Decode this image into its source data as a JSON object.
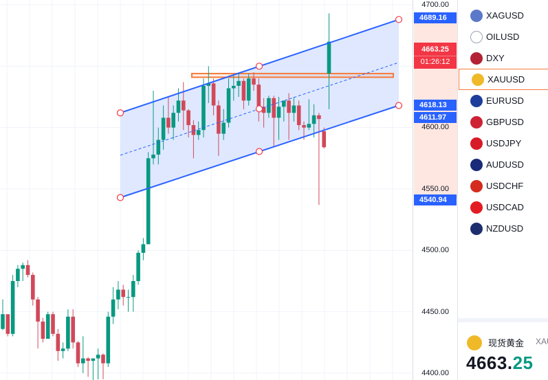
{
  "chart": {
    "price_axis": {
      "labels": [
        "4700.00",
        "4600.00",
        "4550.00",
        "4500.00",
        "4450.00",
        "4400.00"
      ],
      "tags": {
        "upper": "4689.16",
        "mid_top": "4618.13",
        "mid_bottom": "4611.97",
        "lower": "4540.94"
      },
      "current_price": "4663.25",
      "countdown": "01:26:12"
    },
    "colors": {
      "up": "#089981",
      "down": "#d1485a",
      "channel_line": "#2962ff",
      "channel_fill": "#dbe6ff",
      "zone": "#f57c39",
      "price_tag": "#f23645"
    },
    "candles": [
      [
        4436,
        4460,
        4435,
        4448
      ],
      [
        4448,
        4445,
        4430,
        4432
      ],
      [
        4432,
        4480,
        4430,
        4475
      ],
      [
        4475,
        4488,
        4470,
        4485
      ],
      [
        4485,
        4490,
        4475,
        4488
      ],
      [
        4488,
        4492,
        4478,
        4480
      ],
      [
        4480,
        4482,
        4455,
        4460
      ],
      [
        4460,
        4462,
        4420,
        4442
      ],
      [
        4442,
        4445,
        4425,
        4428
      ],
      [
        4428,
        4450,
        4428,
        4448
      ],
      [
        4448,
        4450,
        4430,
        4432
      ],
      [
        4432,
        4436,
        4410,
        4418
      ],
      [
        4418,
        4425,
        4412,
        4420
      ],
      [
        4420,
        4452,
        4418,
        4446
      ],
      [
        4446,
        4452,
        4420,
        4425
      ],
      [
        4425,
        4426,
        4405,
        4408
      ],
      [
        4408,
        4430,
        4400,
        4412
      ],
      [
        4412,
        4413,
        4397,
        4410
      ],
      [
        4410,
        4412,
        4393,
        4412
      ],
      [
        4412,
        4420,
        4395,
        4415
      ],
      [
        4415,
        4416,
        4395,
        4408
      ],
      [
        4408,
        4450,
        4405,
        4446
      ],
      [
        4446,
        4470,
        4440,
        4460
      ],
      [
        4460,
        4475,
        4452,
        4468
      ],
      [
        4468,
        4472,
        4455,
        4462
      ],
      [
        4462,
        4468,
        4450,
        4462
      ],
      [
        4462,
        4480,
        4450,
        4475
      ],
      [
        4475,
        4500,
        4472,
        4498
      ],
      [
        4498,
        4510,
        4492,
        4505
      ],
      [
        4505,
        4580,
        4505,
        4575
      ],
      [
        4575,
        4630,
        4570,
        4578
      ],
      [
        4578,
        4600,
        4570,
        4590
      ],
      [
        4590,
        4618,
        4582,
        4608
      ],
      [
        4608,
        4625,
        4595,
        4600
      ],
      [
        4600,
        4618,
        4590,
        4612
      ],
      [
        4612,
        4632,
        4605,
        4622
      ],
      [
        4622,
        4637,
        4598,
        4614
      ],
      [
        4614,
        4615,
        4592,
        4602
      ],
      [
        4602,
        4606,
        4575,
        4594
      ],
      [
        4594,
        4605,
        4590,
        4598
      ],
      [
        4598,
        4640,
        4592,
        4634
      ],
      [
        4634,
        4650,
        4620,
        4636
      ],
      [
        4636,
        4640,
        4610,
        4618
      ],
      [
        4618,
        4622,
        4577,
        4595
      ],
      [
        4595,
        4615,
        4590,
        4604
      ],
      [
        4604,
        4640,
        4600,
        4632
      ],
      [
        4632,
        4643,
        4622,
        4634
      ],
      [
        4634,
        4645,
        4625,
        4638
      ],
      [
        4638,
        4640,
        4615,
        4622
      ],
      [
        4622,
        4644,
        4618,
        4640
      ],
      [
        4640,
        4645,
        4630,
        4635
      ],
      [
        4635,
        4640,
        4605,
        4617
      ],
      [
        4617,
        4624,
        4600,
        4612
      ],
      [
        4612,
        4626,
        4608,
        4624
      ],
      [
        4624,
        4626,
        4585,
        4608
      ],
      [
        4608,
        4625,
        4590,
        4617
      ],
      [
        4617,
        4620,
        4605,
        4622
      ],
      [
        4622,
        4628,
        4590,
        4612
      ],
      [
        4612,
        4625,
        4605,
        4618
      ],
      [
        4618,
        4622,
        4598,
        4602
      ],
      [
        4602,
        4605,
        4590,
        4600
      ],
      [
        4600,
        4623,
        4598,
        4603
      ],
      [
        4603,
        4619,
        4592,
        4610
      ],
      [
        4610,
        4612,
        4537,
        4607
      ],
      [
        4597,
        4600,
        4583,
        4584
      ],
      [
        4644,
        4693,
        4615,
        4670
      ]
    ],
    "channel": {
      "left_top": 4612,
      "left_bottom": 4543,
      "right_top": 4688,
      "right_bottom": 4618
    },
    "zone": {
      "high": 4644,
      "low": 4641
    }
  },
  "watchlist": {
    "items": [
      {
        "symbol": "XAGUSD",
        "icon": "silver-icon",
        "color": "#5b78c9"
      },
      {
        "symbol": "OILUSD",
        "icon": "oil-icon",
        "color": "#9aa3b5"
      },
      {
        "symbol": "DXY",
        "icon": "us-flag-icon",
        "color": "#b22234"
      },
      {
        "symbol": "XAUUSD",
        "icon": "gold-icon",
        "color": "#f0b92a"
      },
      {
        "symbol": "EURUSD",
        "icon": "eu-us-flag-icon",
        "color": "#1f3e9c"
      },
      {
        "symbol": "GBPUSD",
        "icon": "uk-us-flag-icon",
        "color": "#cc2233"
      },
      {
        "symbol": "USDJPY",
        "icon": "us-jp-flag-icon",
        "color": "#d71a28"
      },
      {
        "symbol": "AUDUSD",
        "icon": "au-us-flag-icon",
        "color": "#1a2a7a"
      },
      {
        "symbol": "USDCHF",
        "icon": "us-ch-flag-icon",
        "color": "#d52b1e"
      },
      {
        "symbol": "USDCAD",
        "icon": "us-ca-flag-icon",
        "color": "#e31b23"
      },
      {
        "symbol": "NZDUSD",
        "icon": "nz-us-flag-icon",
        "color": "#1c2e6e"
      }
    ],
    "selected": "XAUUSD"
  },
  "quote": {
    "name": "现货黄金",
    "symbol": "XAU",
    "price_int": "4663.",
    "price_dec": "25"
  }
}
